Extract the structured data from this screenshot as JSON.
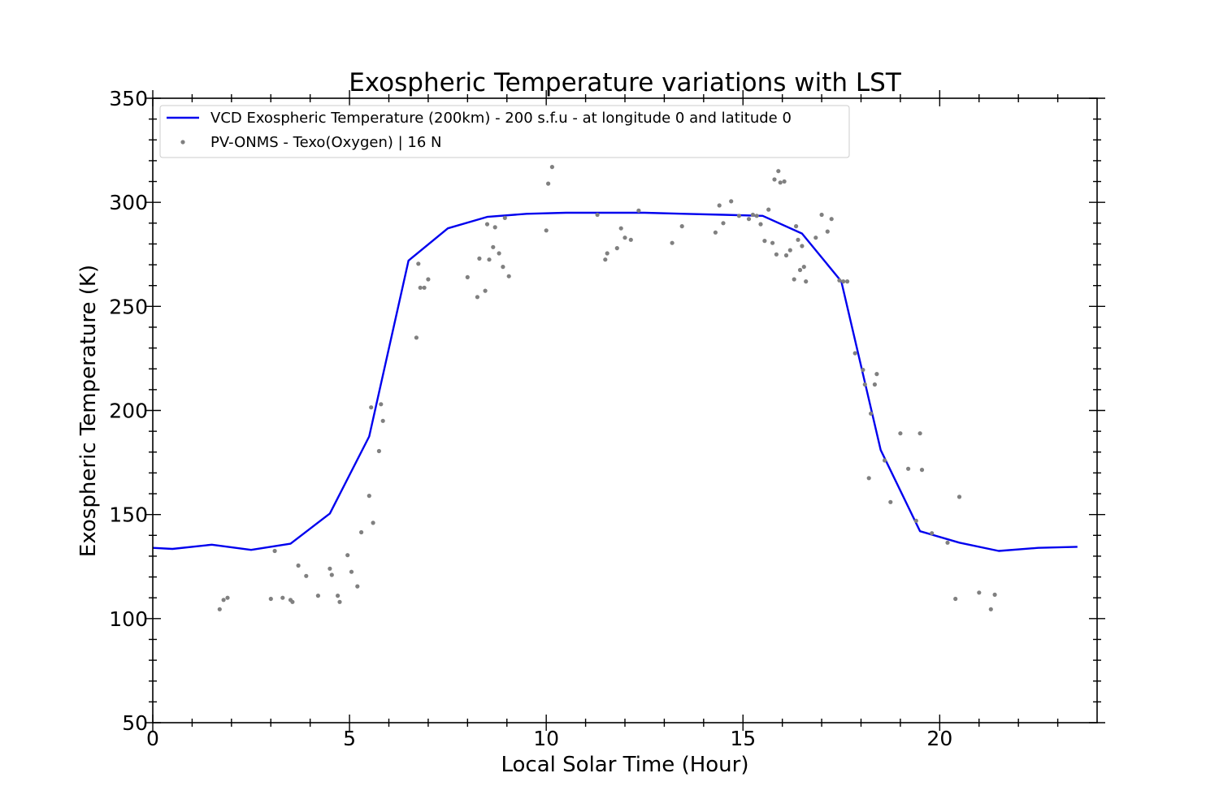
{
  "chart_data": {
    "type": "line",
    "title": "Exospheric Temperature variations with LST",
    "xlabel": "Local Solar Time (Hour)",
    "ylabel": "Exospheric Temperature (K)",
    "xlim": [
      0,
      24
    ],
    "ylim": [
      50,
      350
    ],
    "xticks": [
      0,
      5,
      10,
      15,
      20
    ],
    "yticks": [
      50,
      100,
      150,
      200,
      250,
      300,
      350
    ],
    "grid": false,
    "legend_position": "top-left",
    "series": [
      {
        "name": "VCD Exospheric Temperature (200km) - 200 s.f.u - at longitude 0 and latitude 0",
        "kind": "line",
        "color": "#0000ee",
        "x": [
          0,
          0.5,
          1.5,
          2.5,
          3.5,
          4.5,
          5.5,
          6.5,
          7.5,
          8.5,
          9.5,
          10.5,
          11.5,
          12.5,
          13.5,
          14.5,
          15.5,
          16.5,
          17.5,
          18.5,
          19.5,
          20.5,
          21.5,
          22.5,
          23.5
        ],
        "y": [
          134,
          133.5,
          135.5,
          133,
          136,
          150.5,
          187.5,
          272,
          287.5,
          293,
          294.5,
          295,
          295,
          295,
          294.5,
          294,
          293.5,
          285,
          262,
          181,
          142,
          136.5,
          132.5,
          134,
          134.5
        ]
      },
      {
        "name": "PV-ONMS - Texo(Oxygen) | 16 N",
        "kind": "scatter",
        "color": "#808080",
        "x": [
          1.7,
          1.8,
          1.9,
          3.0,
          3.1,
          3.3,
          3.5,
          3.55,
          3.7,
          3.9,
          4.2,
          4.5,
          4.55,
          4.7,
          4.75,
          4.95,
          5.05,
          5.2,
          5.3,
          5.5,
          5.55,
          5.6,
          5.75,
          5.8,
          5.85,
          6.75,
          6.8,
          6.9,
          7.0,
          6.7,
          8.0,
          8.25,
          8.3,
          8.45,
          8.5,
          8.55,
          8.65,
          8.7,
          8.8,
          8.9,
          8.95,
          9.05,
          10.0,
          10.05,
          10.15,
          11.3,
          11.5,
          11.55,
          11.8,
          11.9,
          12.0,
          12.15,
          12.35,
          13.2,
          13.45,
          14.3,
          14.4,
          14.5,
          14.7,
          14.9,
          15.15,
          15.25,
          15.35,
          15.45,
          15.55,
          15.65,
          15.75,
          15.8,
          15.85,
          15.9,
          15.95,
          16.05,
          16.1,
          16.2,
          16.3,
          16.35,
          16.4,
          16.45,
          16.5,
          16.55,
          16.6,
          16.85,
          17.0,
          17.15,
          17.25,
          17.45,
          17.55,
          17.65,
          17.85,
          18.05,
          18.1,
          18.25,
          18.35,
          18.4,
          18.2,
          18.6,
          18.75,
          19.0,
          19.2,
          19.4,
          19.5,
          19.55,
          19.8,
          20.2,
          20.4,
          20.5,
          21.0,
          21.3,
          21.4
        ],
        "y": [
          104.5,
          109,
          110,
          109.5,
          132.5,
          110,
          109,
          108,
          125.5,
          120.5,
          111,
          124,
          121,
          111,
          108,
          130.5,
          122.5,
          115.5,
          141.5,
          159,
          201.5,
          146,
          180.5,
          203,
          195,
          270.5,
          259,
          259,
          263,
          235,
          264,
          254.5,
          273,
          257.5,
          289.5,
          272.5,
          278.5,
          288,
          275.5,
          269,
          292.5,
          264.5,
          286.5,
          309,
          317,
          294,
          272.5,
          275.5,
          278,
          287.5,
          283,
          282,
          296,
          280.5,
          288.5,
          285.5,
          298.5,
          290,
          300.5,
          293.5,
          292,
          294,
          293.5,
          289.5,
          281.5,
          296.5,
          280.5,
          311,
          275,
          315,
          309.5,
          310,
          274.5,
          277,
          263,
          288.5,
          282,
          267.5,
          279,
          269,
          262,
          283,
          294,
          286,
          292,
          262.5,
          262,
          262,
          227.5,
          219.5,
          212.5,
          198.5,
          212.5,
          217.5,
          167.5,
          176,
          156,
          189,
          172,
          147,
          189,
          171.5,
          141,
          136.5,
          109.5,
          158.5,
          112.5,
          104.5,
          111.5
        ]
      }
    ]
  }
}
